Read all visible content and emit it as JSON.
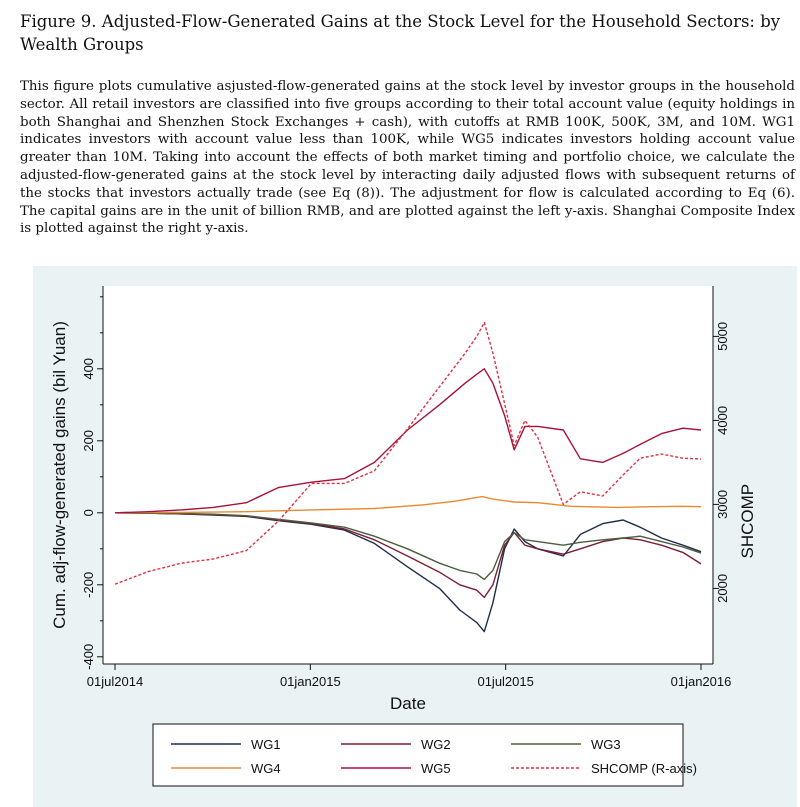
{
  "figure": {
    "title": "Figure 9. Adjusted-Flow-Generated Gains at the Stock Level for the Household Sectors: by Wealth Groups",
    "caption": "This figure plots cumulative asjusted-flow-generated gains at the stock level by investor groups in the household sector. All retail investors are classified into five groups according to their total account value (equity holdings in both Shanghai and Shenzhen Stock Exchanges + cash), with cutoffs at RMB 100K, 500K, 3M, and 10M. WG1 indicates investors with account value less than 100K, while WG5 indicates investors holding account value greater than 10M. Taking into account the effects of both market timing and portfolio choice, we calculate the adjusted-flow-generated gains at the stock level by interacting daily adjusted flows with subsequent returns of the stocks that investors actually trade (see Eq (8)). The adjustment for flow is calculated according to Eq (6). The capital gains are in the unit of billion RMB, and are plotted against the left y-axis. Shanghai Composite Index is plotted against the right y-axis."
  },
  "chart_data": {
    "type": "line",
    "xlabel": "Date",
    "ylabel": "Cum. adj-flow-generated gains (bil Yuan)",
    "ylabel_right": "SHCOMP",
    "xlim": [
      "2014-07-01",
      "2016-01-01"
    ],
    "xticks": [
      "01jul2014",
      "01jan2015",
      "01jul2015",
      "01jan2016"
    ],
    "ylim": [
      -420,
      630
    ],
    "yticks": [
      -400,
      -200,
      0,
      200,
      400
    ],
    "ylim_right": [
      1100,
      5600
    ],
    "yticks_right": [
      2000,
      3000,
      4000,
      5000
    ],
    "background_color": "#eaf2f3",
    "legend_position": "bottom",
    "series": [
      {
        "name": "WG1",
        "color": "#1f2d4d",
        "style": "solid",
        "axis": "left",
        "points": [
          [
            "2014-07-01",
            0
          ],
          [
            "2014-08-01",
            -1
          ],
          [
            "2014-09-01",
            -3
          ],
          [
            "2014-10-01",
            -6
          ],
          [
            "2014-11-01",
            -10
          ],
          [
            "2014-12-01",
            -22
          ],
          [
            "2015-01-01",
            -32
          ],
          [
            "2015-02-01",
            -48
          ],
          [
            "2015-03-01",
            -85
          ],
          [
            "2015-04-01",
            -150
          ],
          [
            "2015-05-01",
            -210
          ],
          [
            "2015-05-20",
            -270
          ],
          [
            "2015-06-05",
            -305
          ],
          [
            "2015-06-12",
            -330
          ],
          [
            "2015-06-20",
            -250
          ],
          [
            "2015-07-01",
            -100
          ],
          [
            "2015-07-10",
            -45
          ],
          [
            "2015-07-20",
            -80
          ],
          [
            "2015-08-01",
            -100
          ],
          [
            "2015-08-25",
            -120
          ],
          [
            "2015-09-10",
            -60
          ],
          [
            "2015-10-01",
            -30
          ],
          [
            "2015-10-20",
            -20
          ],
          [
            "2015-11-05",
            -40
          ],
          [
            "2015-11-25",
            -70
          ],
          [
            "2015-12-15",
            -90
          ],
          [
            "2016-01-01",
            -108
          ]
        ]
      },
      {
        "name": "WG2",
        "color": "#7a1f35",
        "style": "solid",
        "axis": "left",
        "points": [
          [
            "2014-07-01",
            0
          ],
          [
            "2014-08-01",
            -1
          ],
          [
            "2014-09-01",
            -3
          ],
          [
            "2014-10-01",
            -5
          ],
          [
            "2014-11-01",
            -9
          ],
          [
            "2014-12-01",
            -20
          ],
          [
            "2015-01-01",
            -30
          ],
          [
            "2015-02-01",
            -45
          ],
          [
            "2015-03-01",
            -75
          ],
          [
            "2015-04-01",
            -120
          ],
          [
            "2015-05-01",
            -165
          ],
          [
            "2015-05-20",
            -200
          ],
          [
            "2015-06-05",
            -215
          ],
          [
            "2015-06-12",
            -235
          ],
          [
            "2015-06-20",
            -200
          ],
          [
            "2015-07-01",
            -90
          ],
          [
            "2015-07-10",
            -55
          ],
          [
            "2015-07-20",
            -90
          ],
          [
            "2015-08-01",
            -100
          ],
          [
            "2015-08-25",
            -115
          ],
          [
            "2015-09-10",
            -100
          ],
          [
            "2015-10-01",
            -80
          ],
          [
            "2015-10-20",
            -70
          ],
          [
            "2015-11-05",
            -75
          ],
          [
            "2015-11-25",
            -90
          ],
          [
            "2015-12-15",
            -110
          ],
          [
            "2016-01-01",
            -142
          ]
        ]
      },
      {
        "name": "WG3",
        "color": "#4b5e3c",
        "style": "solid",
        "axis": "left",
        "points": [
          [
            "2014-07-01",
            0
          ],
          [
            "2014-08-01",
            -1
          ],
          [
            "2014-09-01",
            -2
          ],
          [
            "2014-10-01",
            -4
          ],
          [
            "2014-11-01",
            -8
          ],
          [
            "2014-12-01",
            -18
          ],
          [
            "2015-01-01",
            -28
          ],
          [
            "2015-02-01",
            -40
          ],
          [
            "2015-03-01",
            -65
          ],
          [
            "2015-04-01",
            -100
          ],
          [
            "2015-05-01",
            -140
          ],
          [
            "2015-05-20",
            -160
          ],
          [
            "2015-06-05",
            -170
          ],
          [
            "2015-06-12",
            -185
          ],
          [
            "2015-06-20",
            -160
          ],
          [
            "2015-07-01",
            -80
          ],
          [
            "2015-07-10",
            -55
          ],
          [
            "2015-07-20",
            -75
          ],
          [
            "2015-08-01",
            -80
          ],
          [
            "2015-08-25",
            -90
          ],
          [
            "2015-09-10",
            -82
          ],
          [
            "2015-10-01",
            -75
          ],
          [
            "2015-10-20",
            -70
          ],
          [
            "2015-11-05",
            -65
          ],
          [
            "2015-11-25",
            -80
          ],
          [
            "2015-12-15",
            -95
          ],
          [
            "2016-01-01",
            -112
          ]
        ]
      },
      {
        "name": "WG4",
        "color": "#e88a33",
        "style": "solid",
        "axis": "left",
        "points": [
          [
            "2014-07-01",
            0
          ],
          [
            "2014-09-01",
            1
          ],
          [
            "2014-11-01",
            3
          ],
          [
            "2015-01-01",
            8
          ],
          [
            "2015-03-01",
            12
          ],
          [
            "2015-04-15",
            22
          ],
          [
            "2015-05-15",
            32
          ],
          [
            "2015-06-10",
            45
          ],
          [
            "2015-06-20",
            38
          ],
          [
            "2015-07-10",
            30
          ],
          [
            "2015-08-01",
            28
          ],
          [
            "2015-09-01",
            18
          ],
          [
            "2015-10-15",
            15
          ],
          [
            "2015-11-15",
            17
          ],
          [
            "2015-12-15",
            18
          ],
          [
            "2016-01-01",
            17
          ]
        ]
      },
      {
        "name": "WG5",
        "color": "#a8123a",
        "style": "solid",
        "axis": "left",
        "points": [
          [
            "2014-07-01",
            0
          ],
          [
            "2014-08-01",
            3
          ],
          [
            "2014-09-01",
            8
          ],
          [
            "2014-10-01",
            15
          ],
          [
            "2014-11-01",
            28
          ],
          [
            "2014-12-01",
            70
          ],
          [
            "2015-01-01",
            85
          ],
          [
            "2015-02-01",
            95
          ],
          [
            "2015-03-01",
            140
          ],
          [
            "2015-04-01",
            230
          ],
          [
            "2015-05-01",
            300
          ],
          [
            "2015-05-25",
            360
          ],
          [
            "2015-06-05",
            385
          ],
          [
            "2015-06-12",
            400
          ],
          [
            "2015-06-20",
            360
          ],
          [
            "2015-07-01",
            270
          ],
          [
            "2015-07-10",
            175
          ],
          [
            "2015-07-20",
            240
          ],
          [
            "2015-08-01",
            240
          ],
          [
            "2015-08-25",
            230
          ],
          [
            "2015-09-10",
            150
          ],
          [
            "2015-10-01",
            140
          ],
          [
            "2015-10-20",
            165
          ],
          [
            "2015-11-05",
            190
          ],
          [
            "2015-11-25",
            220
          ],
          [
            "2015-12-15",
            235
          ],
          [
            "2016-01-01",
            230
          ]
        ]
      },
      {
        "name": "SHCOMP (R-axis)",
        "color": "#e03040",
        "style": "dotted",
        "axis": "right",
        "points": [
          [
            "2014-07-01",
            2050
          ],
          [
            "2014-08-01",
            2200
          ],
          [
            "2014-09-01",
            2300
          ],
          [
            "2014-10-01",
            2350
          ],
          [
            "2014-11-01",
            2450
          ],
          [
            "2014-12-01",
            2800
          ],
          [
            "2015-01-01",
            3250
          ],
          [
            "2015-02-01",
            3250
          ],
          [
            "2015-03-01",
            3400
          ],
          [
            "2015-04-01",
            3900
          ],
          [
            "2015-05-01",
            4400
          ],
          [
            "2015-05-25",
            4800
          ],
          [
            "2015-06-05",
            5000
          ],
          [
            "2015-06-12",
            5166
          ],
          [
            "2015-06-20",
            4800
          ],
          [
            "2015-07-01",
            4200
          ],
          [
            "2015-07-10",
            3700
          ],
          [
            "2015-07-20",
            4000
          ],
          [
            "2015-08-01",
            3800
          ],
          [
            "2015-08-25",
            3000
          ],
          [
            "2015-09-10",
            3150
          ],
          [
            "2015-10-01",
            3100
          ],
          [
            "2015-10-20",
            3350
          ],
          [
            "2015-11-05",
            3550
          ],
          [
            "2015-11-25",
            3600
          ],
          [
            "2015-12-15",
            3550
          ],
          [
            "2016-01-01",
            3540
          ]
        ]
      }
    ]
  }
}
